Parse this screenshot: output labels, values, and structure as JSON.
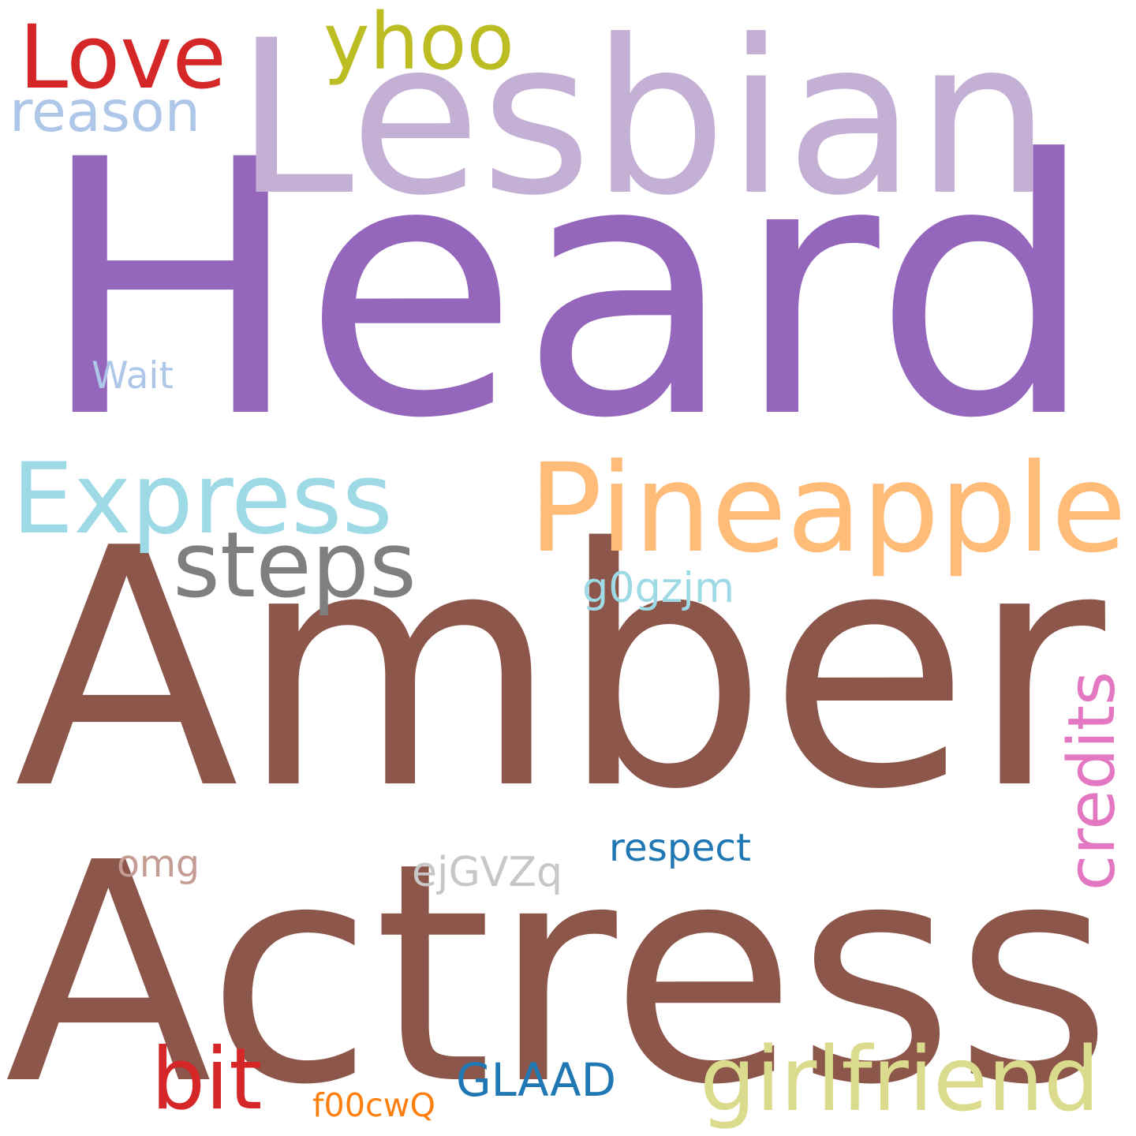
{
  "words": [
    {
      "text": "Heard",
      "color": "#9467bd"
    },
    {
      "text": "Amber",
      "color": "#8c564b"
    },
    {
      "text": "Actress",
      "color": "#8c564b"
    },
    {
      "text": "Lesbian",
      "color": "#c5b0d5"
    },
    {
      "text": "Pineapple",
      "color": "#ffbb78"
    },
    {
      "text": "Express",
      "color": "#9edae5"
    },
    {
      "text": "Love",
      "color": "#d62728"
    },
    {
      "text": "yhoo",
      "color": "#bcbd22"
    },
    {
      "text": "steps",
      "color": "#7f7f7f"
    },
    {
      "text": "girlfriend",
      "color": "#dbdb8d"
    },
    {
      "text": "reason",
      "color": "#aec7e8"
    },
    {
      "text": "GLAAD",
      "color": "#1f77b4"
    },
    {
      "text": "bit",
      "color": "#d62728"
    },
    {
      "text": "credits",
      "color": "#e377c2"
    },
    {
      "text": "g0gzjm",
      "color": "#9edae5"
    },
    {
      "text": "omg",
      "color": "#c49c94"
    },
    {
      "text": "ejGVZq",
      "color": "#c7c7c7"
    },
    {
      "text": "respect",
      "color": "#1f77b4"
    },
    {
      "text": "Wait",
      "color": "#aec7e8"
    },
    {
      "text": "f00cwQ",
      "color": "#ff7f0e"
    }
  ]
}
